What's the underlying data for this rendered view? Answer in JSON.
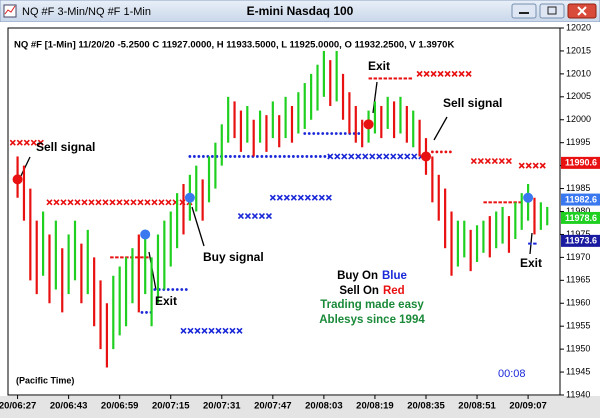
{
  "title_bar": {
    "left": "NQ #F 3-Min/NQ #F 1-Min",
    "center": "E-mini Nasdaq 100"
  },
  "chart_data": {
    "type": "bar",
    "info": "NQ #F [1-Min] 11/20/20  -5.2500 C 11927.0000, H 11933.5000, L 11925.0000, O 11932.2500, V 1.3970K",
    "timezone": "(Pacific Time)",
    "countdown": "00:08",
    "xlim": [
      -3,
      170
    ],
    "xticks": [
      {
        "value": 0,
        "label": "20/06:27"
      },
      {
        "value": 16,
        "label": "20/06:43"
      },
      {
        "value": 32,
        "label": "20/06:59"
      },
      {
        "value": 48,
        "label": "20/07:15"
      },
      {
        "value": 64,
        "label": "20/07:31"
      },
      {
        "value": 80,
        "label": "20/07:47"
      },
      {
        "value": 96,
        "label": "20/08:03"
      },
      {
        "value": 112,
        "label": "20/08:19"
      },
      {
        "value": 128,
        "label": "20/08:35"
      },
      {
        "value": 144,
        "label": "20/08:51"
      },
      {
        "value": 160,
        "label": "20/09:07"
      }
    ],
    "ylim": [
      11940,
      12020
    ],
    "yticks": [
      11940,
      11945,
      11950,
      11955,
      11960,
      11965,
      11970,
      11975,
      11980,
      11985,
      11990,
      11995,
      12000,
      12005,
      12010,
      12015,
      12020
    ],
    "bars": {
      "x": [
        0,
        2,
        4,
        6,
        8,
        10,
        12,
        14,
        16,
        18,
        20,
        22,
        24,
        26,
        28,
        30,
        32,
        34,
        36,
        38,
        40,
        42,
        44,
        46,
        48,
        50,
        52,
        54,
        56,
        58,
        60,
        62,
        64,
        66,
        68,
        70,
        72,
        74,
        76,
        78,
        80,
        82,
        84,
        86,
        88,
        90,
        92,
        94,
        96,
        98,
        100,
        102,
        104,
        106,
        108,
        110,
        112,
        114,
        116,
        118,
        120,
        122,
        124,
        126,
        128,
        130,
        132,
        134,
        136,
        138,
        140,
        142,
        144,
        146,
        148,
        150,
        152,
        154,
        156,
        158,
        160,
        162,
        164,
        166
      ],
      "high": [
        11992,
        11990,
        11985,
        11978,
        11980,
        11975,
        11978,
        11972,
        11975,
        11978,
        11973,
        11976,
        11970,
        11965,
        11960,
        11966,
        11968,
        11970,
        11972,
        11975,
        11976,
        11970,
        11975,
        11978,
        11980,
        11984,
        11986,
        11988,
        11990,
        11987,
        11992,
        11995,
        11999,
        12005,
        12004,
        12002,
        12003,
        12000,
        12002,
        12001,
        12004,
        12001,
        12005,
        12003,
        12006,
        12008,
        12010,
        12012,
        12015,
        12013,
        12015,
        12010,
        12006,
        12003,
        12000,
        12002,
        12004,
        12003,
        12005,
        12004,
        12005,
        12003,
        12002,
        12000,
        11996,
        11992,
        11988,
        11985,
        11980,
        11978,
        11978,
        11976,
        11977,
        11978,
        11979,
        11980,
        11981,
        11979,
        11982,
        11984,
        11986,
        11983,
        11982,
        11981
      ],
      "low": [
        11983,
        11978,
        11965,
        11962,
        11966,
        11960,
        11963,
        11958,
        11962,
        11965,
        11960,
        11962,
        11955,
        11950,
        11946,
        11950,
        11953,
        11955,
        11960,
        11958,
        11962,
        11955,
        11960,
        11963,
        11968,
        11972,
        11975,
        11978,
        11980,
        11978,
        11982,
        11985,
        11990,
        11995,
        11996,
        11993,
        11995,
        11992,
        11995,
        11993,
        11996,
        11994,
        11996,
        11995,
        11997,
        11998,
        12000,
        12002,
        12005,
        12003,
        12004,
        12000,
        11997,
        11995,
        11994,
        11995,
        11997,
        11996,
        11998,
        11996,
        11997,
        11995,
        11994,
        11992,
        11988,
        11982,
        11978,
        11972,
        11966,
        11968,
        11970,
        11967,
        11969,
        11971,
        11970,
        11972,
        11973,
        11971,
        11974,
        11976,
        11978,
        11975,
        11976,
        11977
      ],
      "colors": [
        "#e81010",
        "#e81010",
        "#e81010",
        "#e81010",
        "#20d020",
        "#e81010",
        "#20d020",
        "#e81010",
        "#20d020",
        "#20d020",
        "#e81010",
        "#20d020",
        "#e81010",
        "#e81010",
        "#e81010",
        "#20d020",
        "#20d020",
        "#20d020",
        "#20d020",
        "#e81010",
        "#20d020",
        "#20d020",
        "#20d020",
        "#20d020",
        "#20d020",
        "#20d020",
        "#e81010",
        "#20d020",
        "#20d020",
        "#e81010",
        "#20d020",
        "#20d020",
        "#20d020",
        "#20d020",
        "#e81010",
        "#e81010",
        "#20d020",
        "#e81010",
        "#20d020",
        "#e81010",
        "#20d020",
        "#e81010",
        "#20d020",
        "#e81010",
        "#20d020",
        "#20d020",
        "#20d020",
        "#20d020",
        "#20d020",
        "#e81010",
        "#20d020",
        "#e81010",
        "#e81010",
        "#e81010",
        "#e81010",
        "#20d020",
        "#20d020",
        "#e81010",
        "#20d020",
        "#e81010",
        "#20d020",
        "#e81010",
        "#20d020",
        "#e81010",
        "#e81010",
        "#e81010",
        "#e81010",
        "#e81010",
        "#e81010",
        "#20d020",
        "#20d020",
        "#e81010",
        "#20d020",
        "#20d020",
        "#e81010",
        "#20d020",
        "#20d020",
        "#e81010",
        "#20d020",
        "#20d020",
        "#20d020",
        "#e81010",
        "#20d020",
        "#20d020"
      ]
    },
    "stop_lines": [
      {
        "color": "#e81010",
        "marker": "x",
        "value": 11995,
        "x": [
          -1.5,
          8.7
        ]
      },
      {
        "color": "#e81010",
        "marker": "x",
        "value": 11982,
        "x": [
          10,
          54
        ]
      },
      {
        "color": "#e81010",
        "marker": "dash",
        "value": 11970,
        "x": [
          29,
          41
        ]
      },
      {
        "color": "#1a28d8",
        "marker": "dot",
        "value": 11958,
        "x": [
          39,
          43
        ]
      },
      {
        "color": "#1a28d8",
        "marker": "dot",
        "value": 11963,
        "x": [
          43,
          54
        ]
      },
      {
        "color": "#1a28d8",
        "marker": "x",
        "value": 11954,
        "x": [
          52,
          70
        ]
      },
      {
        "color": "#1a28d8",
        "marker": "dot",
        "value": 11992,
        "x": [
          54,
          98
        ]
      },
      {
        "color": "#1a28d8",
        "marker": "x",
        "value": 11979,
        "x": [
          70,
          80
        ]
      },
      {
        "color": "#1a28d8",
        "marker": "x",
        "value": 11983,
        "x": [
          80,
          98
        ]
      },
      {
        "color": "#1a28d8",
        "marker": "x",
        "value": 11992,
        "x": [
          98,
          127
        ]
      },
      {
        "color": "#1a28d8",
        "marker": "dot",
        "value": 11997,
        "x": [
          90,
          108
        ]
      },
      {
        "color": "#e81010",
        "marker": "dash",
        "value": 12009,
        "x": [
          110,
          123
        ]
      },
      {
        "color": "#e81010",
        "marker": "x",
        "value": 12010,
        "x": [
          126,
          143
        ]
      },
      {
        "color": "#e81010",
        "marker": "dot",
        "value": 11993,
        "x": [
          130,
          137
        ]
      },
      {
        "color": "#e81010",
        "marker": "x",
        "value": 11991,
        "x": [
          143,
          155
        ]
      },
      {
        "color": "#e81010",
        "marker": "dash",
        "value": 11982,
        "x": [
          146,
          158
        ]
      },
      {
        "color": "#e81010",
        "marker": "x",
        "value": 11990,
        "x": [
          158,
          165
        ]
      },
      {
        "color": "#1a28d8",
        "marker": "dash",
        "value": 11973,
        "x": [
          160,
          163
        ]
      }
    ],
    "signal_dots": [
      {
        "x": 0,
        "y": 11987,
        "color": "#e81010"
      },
      {
        "x": 40,
        "y": 11975,
        "color": "#3a78f0"
      },
      {
        "x": 54,
        "y": 11983,
        "color": "#3a78f0"
      },
      {
        "x": 110,
        "y": 11999,
        "color": "#e81010"
      },
      {
        "x": 128,
        "y": 11992,
        "color": "#e81010"
      },
      {
        "x": 160,
        "y": 11983,
        "color": "#3a78f0"
      }
    ],
    "price_tags": [
      {
        "value": 11990.6,
        "color": "#e81010"
      },
      {
        "value": 11982.6,
        "color": "#3a78f0"
      },
      {
        "value": 11978.6,
        "color": "#20d020"
      },
      {
        "value": 11973.6,
        "color": "#1a1aa0"
      }
    ],
    "annotations": [
      "Sell signal",
      "Exit",
      "Buy signal",
      "Exit",
      "Sell signal",
      "Exit"
    ],
    "legend": {
      "buy": "Buy On",
      "buy_color": "Blue",
      "sell": "Sell On",
      "sell_color": "Red",
      "line3": "Trading made easy",
      "line4": "Ablesys since 1994"
    }
  }
}
